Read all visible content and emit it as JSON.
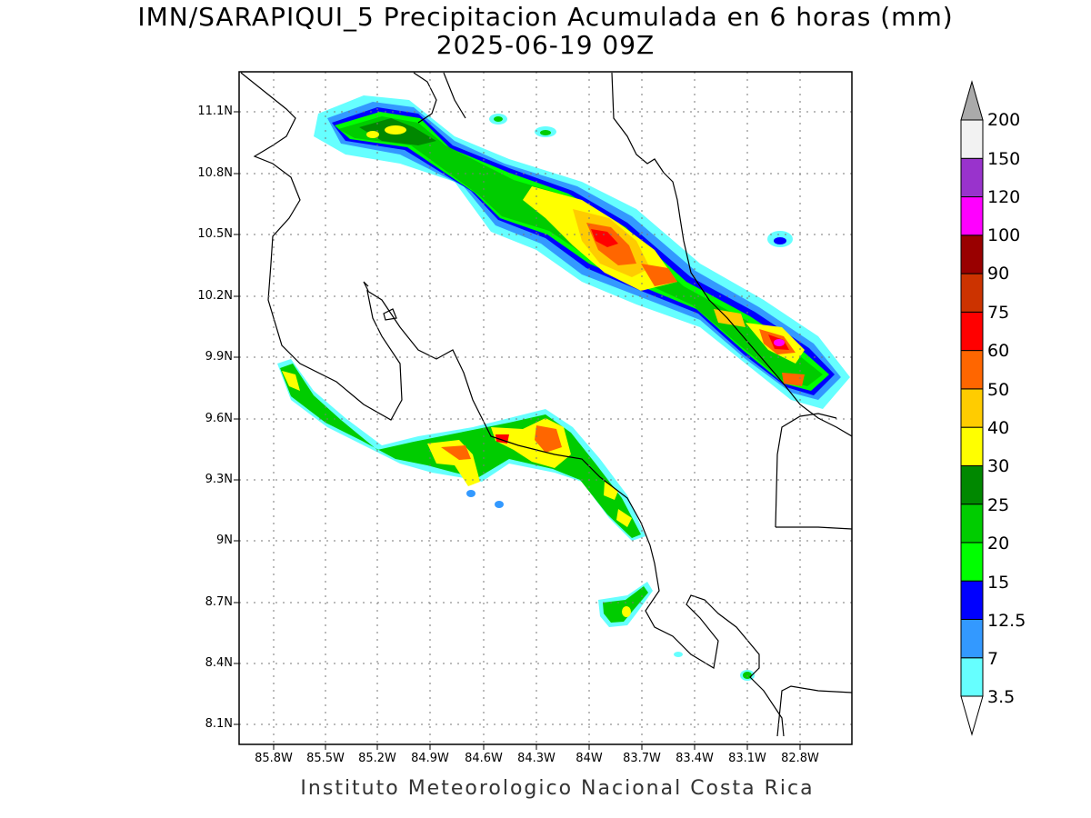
{
  "header": {
    "title": "IMN/SARAPIQUI_5 Precipitacion Acumulada en 6 horas (mm)",
    "subtitle": "2025-06-19 09Z"
  },
  "map": {
    "lat_labels": [
      "11.1N",
      "10.8N",
      "10.5N",
      "10.2N",
      "9.9N",
      "9.6N",
      "9.3N",
      "9N",
      "8.7N",
      "8.4N",
      "8.1N"
    ],
    "lon_labels": [
      "85.8W",
      "85.5W",
      "85.2W",
      "84.9W",
      "84.6W",
      "84.3W",
      "84W",
      "83.7W",
      "83.4W",
      "83.1W",
      "82.8W"
    ],
    "lon_range": [
      -86.0,
      -82.3
    ],
    "lat_range": [
      8.0,
      11.3
    ],
    "grid": "dotted"
  },
  "colorbar": {
    "labels": [
      "3.5",
      "7",
      "12.5",
      "15",
      "20",
      "25",
      "30",
      "40",
      "50",
      "60",
      "75",
      "90",
      "100",
      "120",
      "150",
      "200"
    ],
    "colors": [
      "#ffffff",
      "#66ffff",
      "#3399ff",
      "#0000ff",
      "#00ff00",
      "#00cc00",
      "#008800",
      "#ffff00",
      "#ffcc00",
      "#ff6600",
      "#ff0000",
      "#cc3300",
      "#990000",
      "#ff00ff",
      "#9933cc",
      "#f2f2f2",
      "#aaaaaa"
    ]
  },
  "footer": "Instituto Meteorologico Nacional Costa Rica"
}
